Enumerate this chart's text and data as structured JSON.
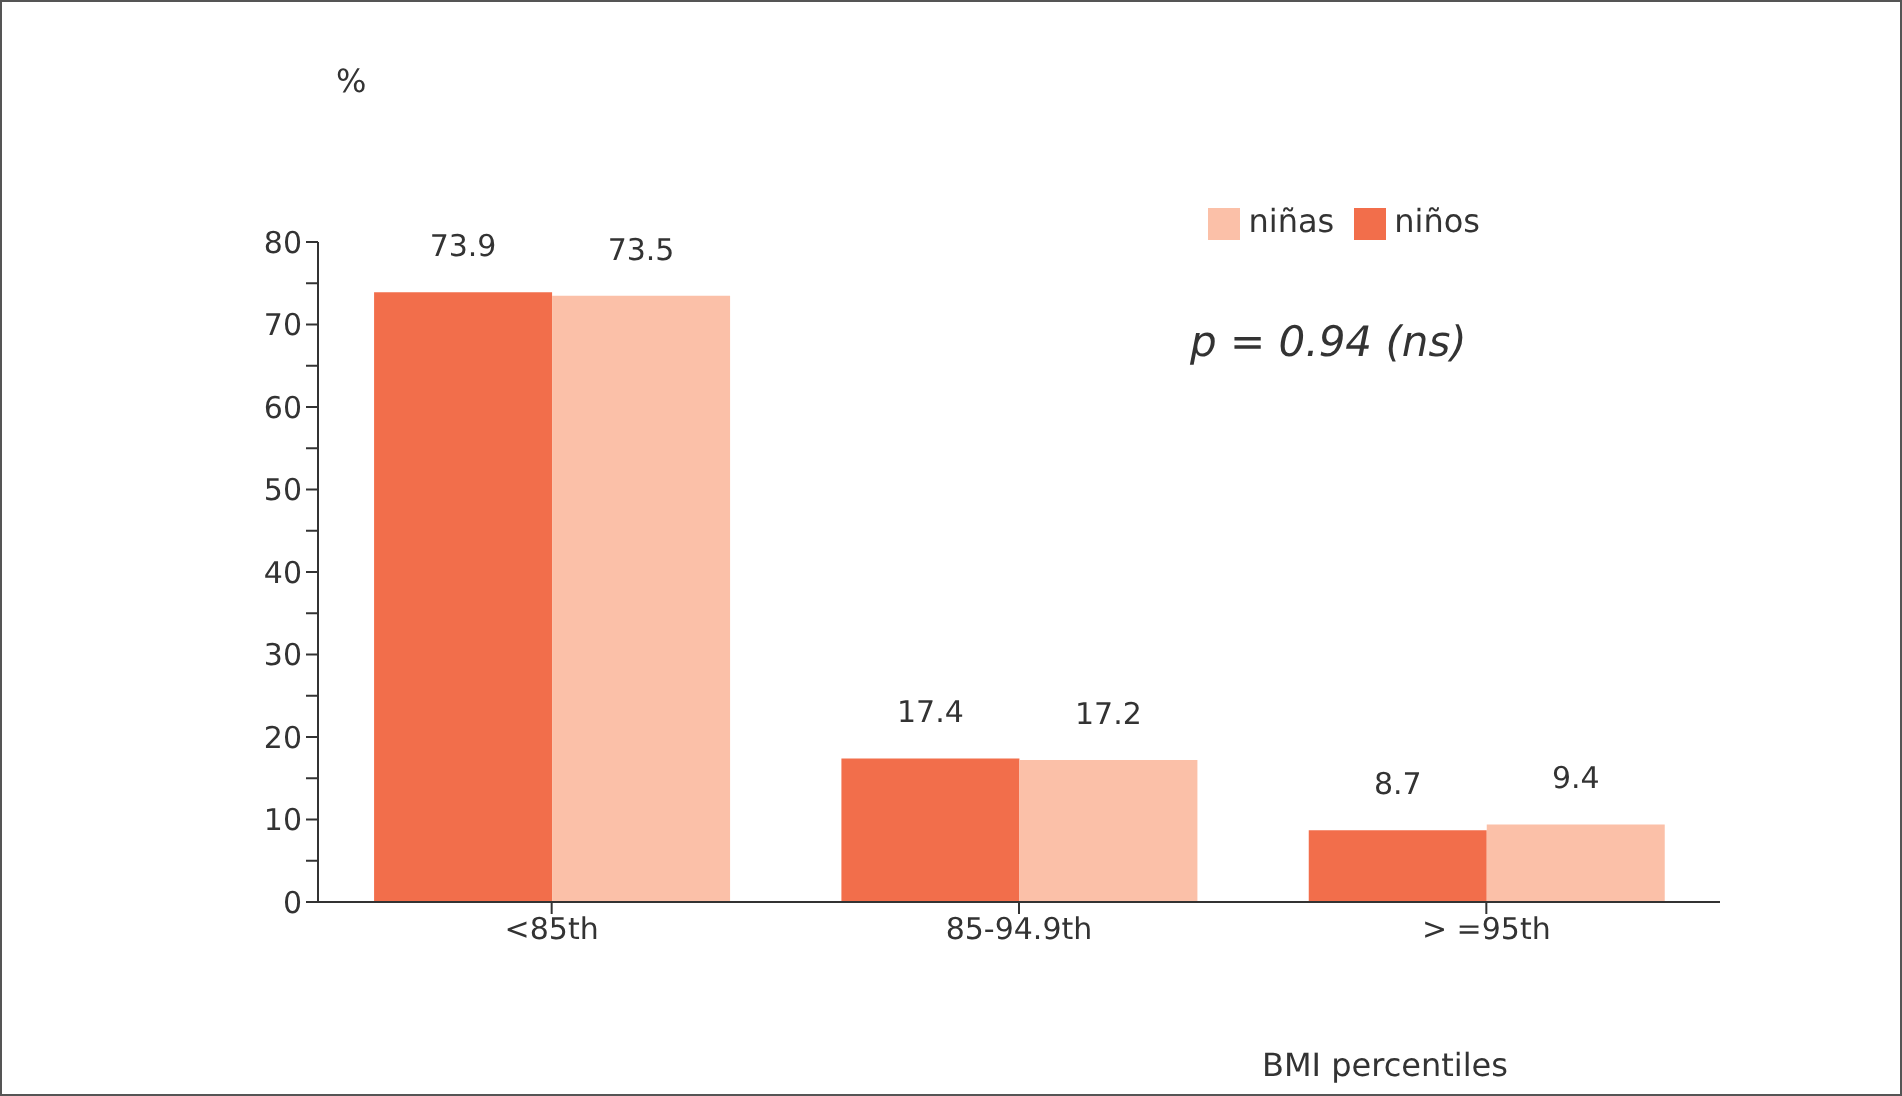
{
  "chart_data": {
    "type": "bar",
    "ylabel": "%",
    "xlabel": "BMI percentiles",
    "categories": [
      "<85th",
      "85-94.9th",
      "> =95th"
    ],
    "series": [
      {
        "name": "niños",
        "color": "#f26e4b",
        "values": [
          73.9,
          17.4,
          8.7
        ]
      },
      {
        "name": "niñas",
        "color": "#fbc0a8",
        "values": [
          73.5,
          17.2,
          9.4
        ]
      }
    ],
    "ylim": [
      0,
      80
    ],
    "yticks": [
      0,
      {
        "value": 5,
        "label": null
      },
      10,
      {
        "value": 15,
        "label": null
      },
      20,
      {
        "value": 25,
        "label": null
      },
      30,
      {
        "value": 35,
        "label": null
      },
      40,
      {
        "value": 45,
        "label": null
      },
      50,
      {
        "value": 55,
        "label": null
      },
      60,
      {
        "value": 65,
        "label": null
      },
      70,
      {
        "value": 75,
        "label": null
      },
      80
    ],
    "data_labels": true,
    "legend": "top right",
    "annotations": [
      "p = 0.94 (ns)"
    ]
  }
}
